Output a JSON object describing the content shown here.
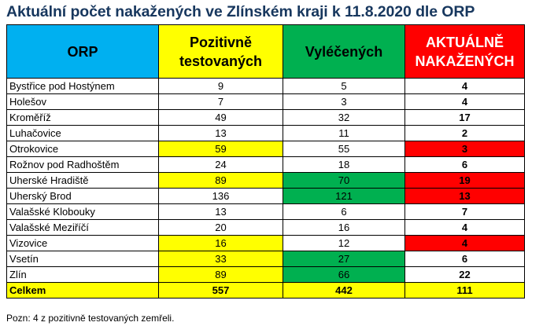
{
  "title": "Aktuální počet nakažených ve Zlínském kraji k 11.8.2020 dle ORP",
  "headers": {
    "orp": "ORP",
    "positive": "Pozitivně testovaných",
    "recovered": "Vyléčených",
    "active": "AKTUÁLNĚ NAKAŽENÝCH"
  },
  "rows": [
    {
      "name": "Bystřice pod Hostýnem",
      "positive": "9",
      "recovered": "5",
      "active": "4"
    },
    {
      "name": "Holešov",
      "positive": "7",
      "recovered": "3",
      "active": "4"
    },
    {
      "name": "Kroměříž",
      "positive": "49",
      "recovered": "32",
      "active": "17"
    },
    {
      "name": "Luhačovice",
      "positive": "13",
      "recovered": "11",
      "active": "2"
    },
    {
      "name": "Otrokovice",
      "positive": "59",
      "recovered": "55",
      "active": "3"
    },
    {
      "name": "Rožnov pod Radhoštěm",
      "positive": "24",
      "recovered": "18",
      "active": "6"
    },
    {
      "name": "Uherské Hradiště",
      "positive": "89",
      "recovered": "70",
      "active": "19"
    },
    {
      "name": "Uherský Brod",
      "positive": "136",
      "recovered": "121",
      "active": "13"
    },
    {
      "name": "Valašské Klobouky",
      "positive": "13",
      "recovered": "6",
      "active": "7"
    },
    {
      "name": "Valašské Meziříčí",
      "positive": "20",
      "recovered": "16",
      "active": "4"
    },
    {
      "name": "Vizovice",
      "positive": "16",
      "recovered": "12",
      "active": "4"
    },
    {
      "name": "Vsetín",
      "positive": "33",
      "recovered": "27",
      "active": "6"
    },
    {
      "name": "Zlín",
      "positive": "89",
      "recovered": "66",
      "active": "22"
    }
  ],
  "total": {
    "name": "Celkem",
    "positive": "557",
    "recovered": "442",
    "active": "111"
  },
  "note": "Pozn: 4 z pozitivně testovaných zemřeli.",
  "colors": {
    "title": "#17375e",
    "header_orp": "#00b0f0",
    "header_positive": "#ffff00",
    "header_recovered": "#00b050",
    "header_active": "#ff0000",
    "highlight_yellow": "#ffff00",
    "highlight_green": "#00b050",
    "highlight_red": "#ff0000"
  }
}
